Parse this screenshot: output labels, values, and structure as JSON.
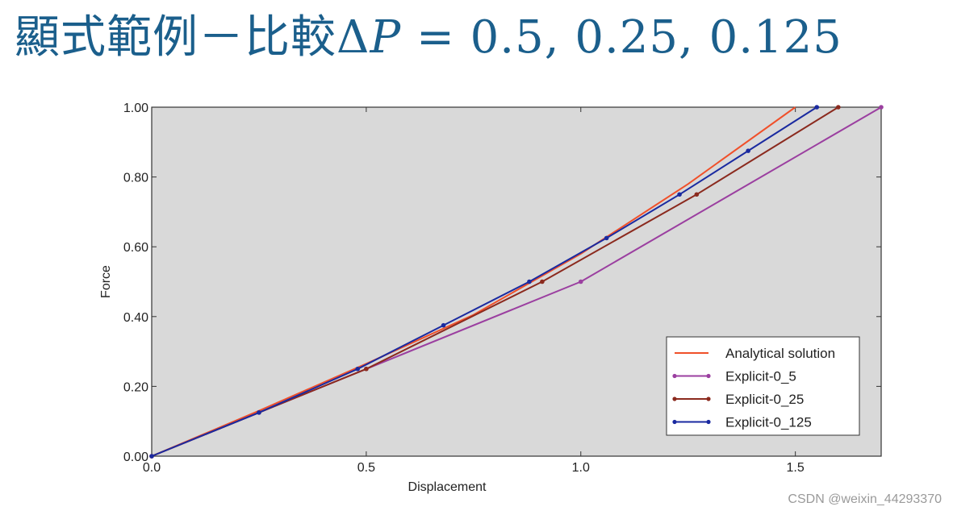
{
  "slide": {
    "title_prefix": "顯式範例－比較",
    "title_delta": "Δ",
    "title_var": "P",
    "title_suffix": " = 0.5, 0.25, 0.125"
  },
  "watermark": "CSDN @weixin_44293370",
  "chart_data": {
    "type": "line",
    "title": "",
    "xlabel": "Displacement",
    "ylabel": "Force",
    "xlim": [
      0,
      1.7
    ],
    "ylim": [
      0,
      1.0
    ],
    "x_ticks": [
      0.0,
      0.5,
      1.0,
      1.5
    ],
    "x_tick_labels": [
      "0.0",
      "0.5",
      "1.0",
      "1.5"
    ],
    "y_ticks": [
      0.0,
      0.2,
      0.4,
      0.6,
      0.8,
      1.0
    ],
    "y_tick_labels": [
      "0.00",
      "0.20",
      "0.40",
      "0.60",
      "0.80",
      "1.00"
    ],
    "grid": false,
    "legend_position": "bottom-right",
    "background_color": "#d9d9d9",
    "series": [
      {
        "name": "Analytical solution",
        "color": "#f0502a",
        "markers": false,
        "x": [
          0.0,
          0.25,
          0.5,
          0.75,
          1.0,
          1.25,
          1.5
        ],
        "y": [
          0.0,
          0.13,
          0.265,
          0.405,
          0.58,
          0.78,
          1.0
        ]
      },
      {
        "name": "Explicit-0_5",
        "color": "#9b3fa0",
        "markers": true,
        "x": [
          0.0,
          0.5,
          1.0,
          1.7
        ],
        "y": [
          0.0,
          0.25,
          0.5,
          1.0
        ]
      },
      {
        "name": "Explicit-0_25",
        "color": "#8b2a1e",
        "markers": true,
        "x": [
          0.0,
          0.25,
          0.5,
          0.91,
          1.27,
          1.6
        ],
        "y": [
          0.0,
          0.125,
          0.25,
          0.5,
          0.75,
          1.0
        ]
      },
      {
        "name": "Explicit-0_125",
        "color": "#1a2aa0",
        "markers": true,
        "x": [
          0.0,
          0.25,
          0.48,
          0.68,
          0.88,
          1.06,
          1.23,
          1.39,
          1.55
        ],
        "y": [
          0.0,
          0.125,
          0.25,
          0.375,
          0.5,
          0.625,
          0.75,
          0.875,
          1.0
        ]
      }
    ]
  }
}
